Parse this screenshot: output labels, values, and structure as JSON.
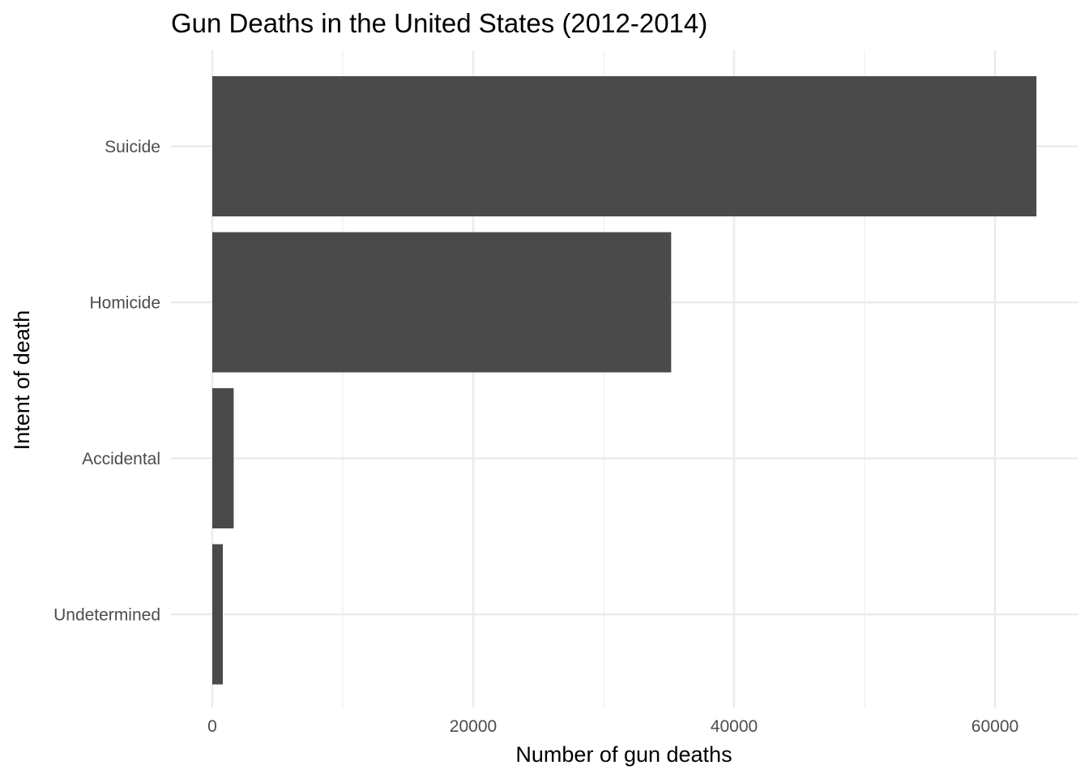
{
  "chart_data": {
    "type": "bar",
    "orientation": "horizontal",
    "title": "Gun Deaths in the United States (2012-2014)",
    "xlabel": "Number of gun deaths",
    "ylabel": "Intent of death",
    "categories": [
      "Suicide",
      "Homicide",
      "Accidental",
      "Undetermined"
    ],
    "values": [
      63175,
      35176,
      1639,
      807
    ],
    "xlim": [
      0,
      65000
    ],
    "x_ticks": [
      0,
      20000,
      40000,
      60000
    ],
    "x_tick_labels": [
      "0",
      "20000",
      "40000",
      "60000"
    ],
    "grid": true,
    "legend": "none",
    "colors": {
      "bar": "#4a4a4a",
      "grid_major": "#ebebeb",
      "grid_minor": "#f2f2f2",
      "tick_text": "#4d4d4d",
      "title_text": "#000000"
    }
  }
}
